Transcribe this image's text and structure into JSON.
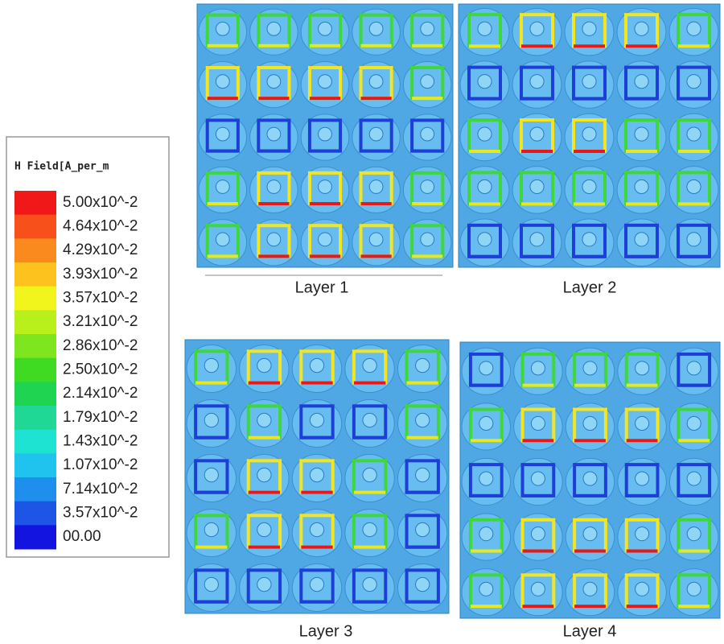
{
  "legend": {
    "title": "H Field[A_per_m",
    "entries": [
      {
        "label": "5.00x10^-2",
        "color": "#f01818"
      },
      {
        "label": "4.64x10^-2",
        "color": "#f8501a"
      },
      {
        "label": "4.29x10^-2",
        "color": "#fb8a1e"
      },
      {
        "label": "3.93x10^-2",
        "color": "#fdc21d"
      },
      {
        "label": "3.57x10^-2",
        "color": "#f2f51c"
      },
      {
        "label": "3.21x10^-2",
        "color": "#b9f01c"
      },
      {
        "label": "2.86x10^-2",
        "color": "#7ee61e"
      },
      {
        "label": "2.50x10^-2",
        "color": "#3fda22"
      },
      {
        "label": "2.14x10^-2",
        "color": "#1fd451"
      },
      {
        "label": "1.79x10^-2",
        "color": "#1fd895"
      },
      {
        "label": "1.43x10^-2",
        "color": "#1fe3d2"
      },
      {
        "label": "1.07x10^-2",
        "color": "#1fc3ee"
      },
      {
        "label": "7.14x10^-2",
        "color": "#1e8fec"
      },
      {
        "label": "3.57x10^-2",
        "color": "#1d55e6"
      },
      {
        "label": "00.00",
        "color": "#1414e0"
      }
    ]
  },
  "panels": [
    {
      "label": "Layer 1"
    },
    {
      "label": "Layer 2"
    },
    {
      "label": "Layer 3"
    },
    {
      "label": "Layer 4"
    }
  ]
}
